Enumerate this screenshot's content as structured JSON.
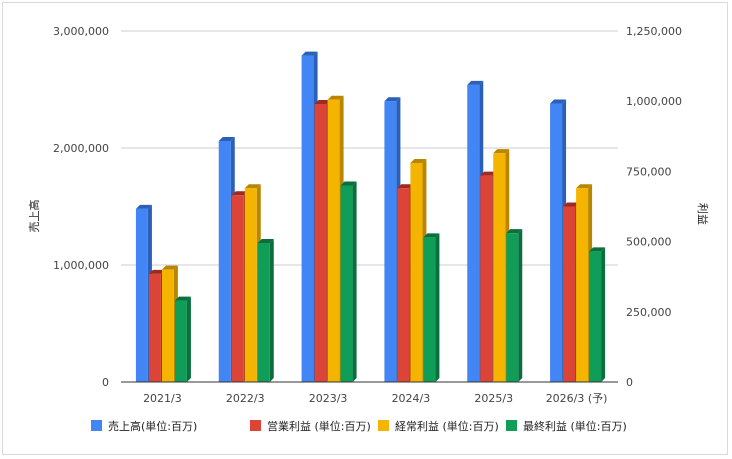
{
  "chart_data": {
    "type": "bar",
    "categories": [
      "2021/3",
      "2022/3",
      "2023/3",
      "2024/3",
      "2025/3",
      "2026/3 (予)"
    ],
    "series": [
      {
        "name": "売上高(単位:百万)",
        "axis": "left",
        "color": "#4285f4",
        "side": "#2b5fb8",
        "values": [
          1480000,
          2060000,
          2790000,
          2400000,
          2540000,
          2380000
        ]
      },
      {
        "name": "営業利益 (単位:百万)",
        "axis": "right",
        "color": "#db4437",
        "side": "#9e2a20",
        "values": [
          385000,
          665000,
          990000,
          690000,
          735000,
          625000
        ]
      },
      {
        "name": "経常利益 (単位:百万)",
        "axis": "right",
        "color": "#f4b400",
        "side": "#b88600",
        "values": [
          400000,
          690000,
          1005000,
          780000,
          815000,
          690000
        ]
      },
      {
        "name": "最終利益 (単位:百万)",
        "axis": "right",
        "color": "#0f9d58",
        "side": "#0a6e3d",
        "values": [
          290000,
          495000,
          700000,
          515000,
          530000,
          465000
        ]
      }
    ],
    "left_axis": {
      "label": "売上高",
      "ylim": [
        0,
        3000000
      ],
      "ticks": [
        0,
        1000000,
        2000000,
        3000000
      ],
      "tick_labels": [
        "0",
        "1,000,000",
        "2,000,000",
        "3,000,000"
      ]
    },
    "right_axis": {
      "label": "利益",
      "ylim": [
        0,
        1250000
      ],
      "ticks": [
        0,
        250000,
        500000,
        750000,
        1000000,
        1250000
      ],
      "tick_labels": [
        "0",
        "250,000",
        "500,000",
        "750,000",
        "1,000,000",
        "1,250,000"
      ]
    },
    "grid": true,
    "legend_position": "bottom"
  }
}
